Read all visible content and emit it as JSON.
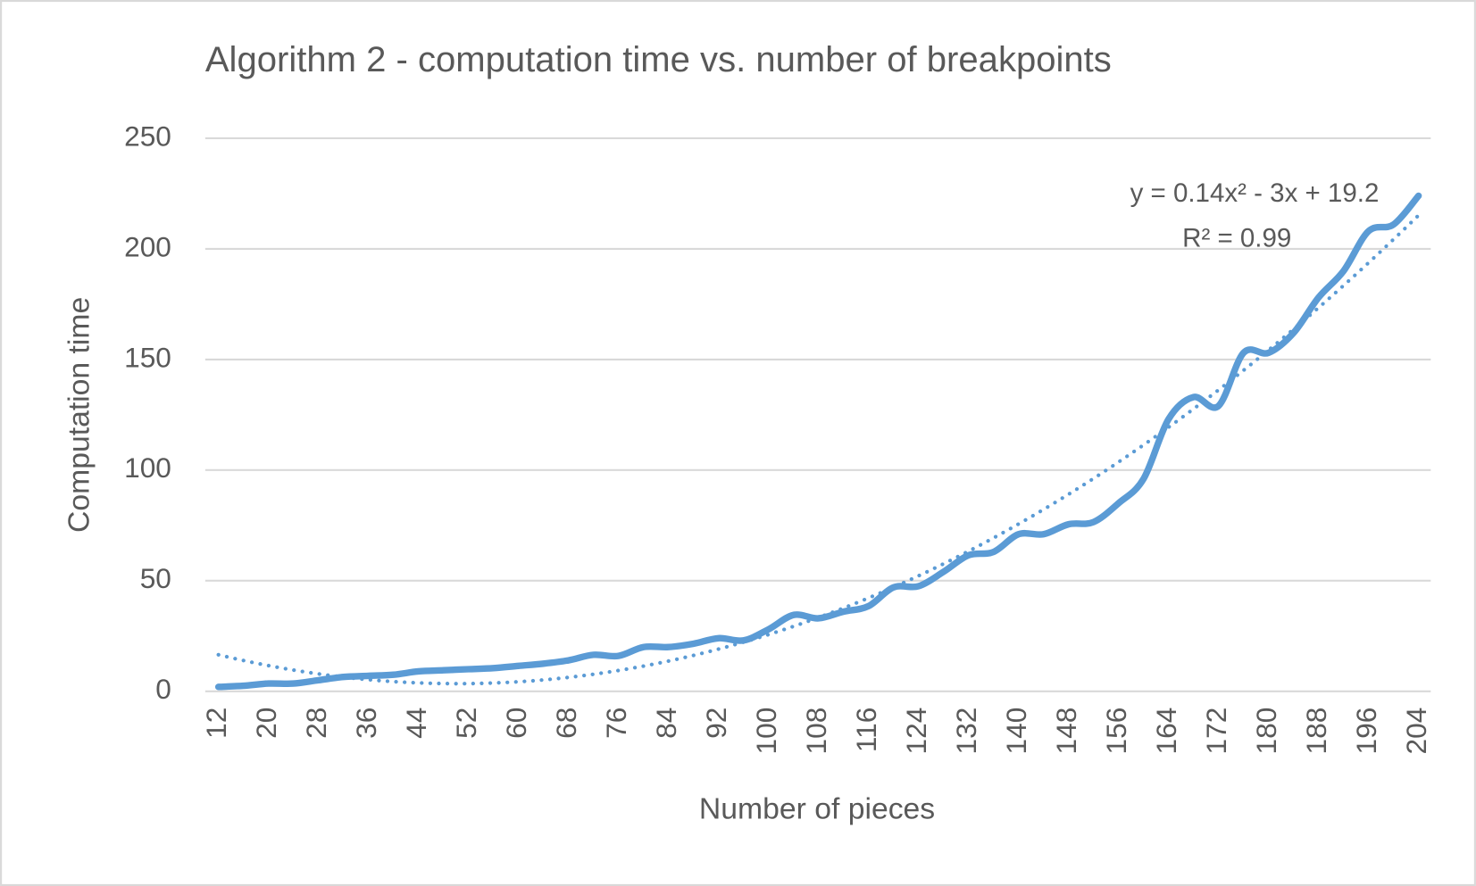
{
  "chart_data": {
    "type": "line",
    "title": "Algorithm 2 - computation time vs. number of breakpoints",
    "x_label": "Number of pieces",
    "y_label": "Computation time",
    "x": [
      12,
      16,
      20,
      24,
      28,
      32,
      36,
      40,
      44,
      48,
      52,
      56,
      60,
      64,
      68,
      72,
      76,
      80,
      84,
      88,
      92,
      96,
      100,
      104,
      108,
      112,
      116,
      120,
      124,
      128,
      132,
      136,
      140,
      144,
      148,
      152,
      156,
      160,
      164,
      168,
      172,
      176,
      180,
      184,
      188,
      192,
      196,
      200,
      204
    ],
    "series": [
      {
        "name": "Computation time",
        "color": "#5b9bd5",
        "values": [
          2,
          2.5,
          3.5,
          3.5,
          5,
          6.5,
          7,
          7.5,
          9,
          9.5,
          10,
          10.5,
          11.5,
          12.5,
          14,
          16.5,
          16,
          20,
          20,
          21.5,
          24,
          23,
          28,
          34.5,
          33,
          36,
          38.5,
          47,
          47.5,
          54,
          61.5,
          63,
          71,
          71,
          75.5,
          76.5,
          85,
          96,
          123,
          133,
          129,
          153,
          153,
          162,
          178,
          190,
          208,
          211,
          224
        ]
      }
    ],
    "trendline": {
      "order": 2,
      "color": "#5b9bd5",
      "equation": "y = 0.14x² - 3x + 19.2",
      "r_squared": "R² = 0.99"
    },
    "xlim": [
      12,
      204
    ],
    "xticks": [
      12,
      20,
      28,
      36,
      44,
      52,
      60,
      68,
      76,
      84,
      92,
      100,
      108,
      116,
      124,
      132,
      140,
      148,
      156,
      164,
      172,
      180,
      188,
      196,
      204
    ],
    "ylim": [
      0,
      250
    ],
    "yticks": [
      0,
      50,
      100,
      150,
      200,
      250
    ],
    "grid": true
  }
}
